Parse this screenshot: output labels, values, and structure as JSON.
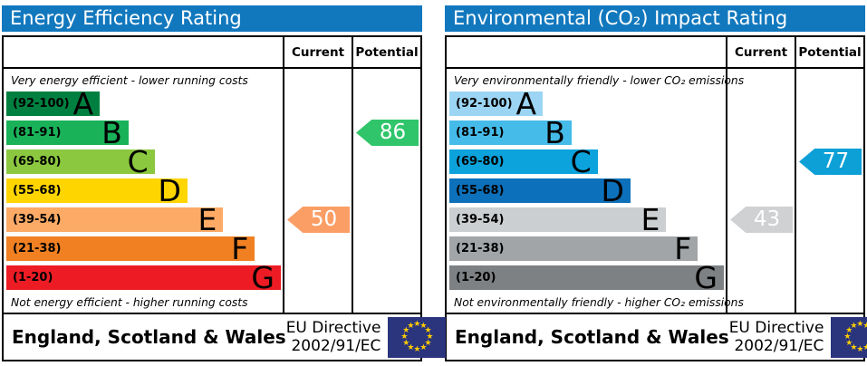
{
  "accent": {
    "header_bg": "#1278be",
    "border": "#000000",
    "eu_flag_bg": "#2a357d",
    "eu_star": "#ffcc00",
    "arrow_text": "#ffffff"
  },
  "band_widths_pct": [
    34,
    44.5,
    54,
    66,
    79,
    90.5,
    100
  ],
  "panels": [
    {
      "title": "Energy Efficiency Rating",
      "col_current": "Current",
      "col_potential": "Potential",
      "top_note": "Very energy efficient - lower running costs",
      "bottom_note": "Not energy efficient - higher running costs",
      "bands": [
        {
          "range": "(92-100)",
          "letter": "A",
          "color": "#008040"
        },
        {
          "range": "(81-91)",
          "letter": "B",
          "color": "#19b259"
        },
        {
          "range": "(69-80)",
          "letter": "C",
          "color": "#8bc83f"
        },
        {
          "range": "(55-68)",
          "letter": "D",
          "color": "#ffd500"
        },
        {
          "range": "(39-54)",
          "letter": "E",
          "color": "#fcaa66"
        },
        {
          "range": "(21-38)",
          "letter": "F",
          "color": "#f08022"
        },
        {
          "range": "(1-20)",
          "letter": "G",
          "color": "#ed1c24"
        }
      ],
      "current": {
        "value": "50",
        "band_index": 4,
        "color": "#fb9e66"
      },
      "potential": {
        "value": "86",
        "band_index": 1,
        "color": "#30c56a"
      },
      "region": "England, Scotland & Wales",
      "directive_line1": "EU Directive",
      "directive_line2": "2002/91/EC"
    },
    {
      "title": "Environmental (CO₂) Impact Rating",
      "col_current": "Current",
      "col_potential": "Potential",
      "top_note": "Very environmentally friendly - lower CO₂ emissions",
      "bottom_note": "Not environmentally friendly - higher CO₂ emissions",
      "bands": [
        {
          "range": "(92-100)",
          "letter": "A",
          "color": "#9bd5f3"
        },
        {
          "range": "(81-91)",
          "letter": "B",
          "color": "#45bbe9"
        },
        {
          "range": "(69-80)",
          "letter": "C",
          "color": "#0ca2dc"
        },
        {
          "range": "(55-68)",
          "letter": "D",
          "color": "#0c70ba"
        },
        {
          "range": "(39-54)",
          "letter": "E",
          "color": "#cccfd1"
        },
        {
          "range": "(21-38)",
          "letter": "F",
          "color": "#a2a5a8"
        },
        {
          "range": "(1-20)",
          "letter": "G",
          "color": "#7e8183"
        }
      ],
      "current": {
        "value": "43",
        "band_index": 4,
        "color": "#cfd1d3"
      },
      "potential": {
        "value": "77",
        "band_index": 2,
        "color": "#0da0d6"
      },
      "region": "England, Scotland & Wales",
      "directive_line1": "EU Directive",
      "directive_line2": "2002/91/EC"
    }
  ],
  "chart_data": [
    {
      "type": "bar",
      "title": "Energy Efficiency Rating",
      "categories": [
        "A (92-100)",
        "B (81-91)",
        "C (69-80)",
        "D (55-68)",
        "E (39-54)",
        "F (21-38)",
        "G (1-20)"
      ],
      "values": [
        34,
        44.5,
        54,
        66,
        79,
        90.5,
        100
      ],
      "band_colors": [
        "#008040",
        "#19b259",
        "#8bc83f",
        "#ffd500",
        "#fcaa66",
        "#f08022",
        "#ed1c24"
      ],
      "current": 50,
      "current_band": "E",
      "potential": 86,
      "potential_band": "B",
      "annotation_top": "Very energy efficient - lower running costs",
      "annotation_bottom": "Not energy efficient - higher running costs",
      "footer": "England, Scotland & Wales | EU Directive 2002/91/EC"
    },
    {
      "type": "bar",
      "title": "Environmental (CO₂) Impact Rating",
      "categories": [
        "A (92-100)",
        "B (81-91)",
        "C (69-80)",
        "D (55-68)",
        "E (39-54)",
        "F (21-38)",
        "G (1-20)"
      ],
      "values": [
        34,
        44.5,
        54,
        66,
        79,
        90.5,
        100
      ],
      "band_colors": [
        "#9bd5f3",
        "#45bbe9",
        "#0ca2dc",
        "#0c70ba",
        "#cccfd1",
        "#a2a5a8",
        "#7e8183"
      ],
      "current": 43,
      "current_band": "E",
      "potential": 77,
      "potential_band": "C",
      "annotation_top": "Very environmentally friendly - lower CO₂ emissions",
      "annotation_bottom": "Not environmentally friendly - higher CO₂ emissions",
      "footer": "England, Scotland & Wales | EU Directive 2002/91/EC"
    }
  ]
}
